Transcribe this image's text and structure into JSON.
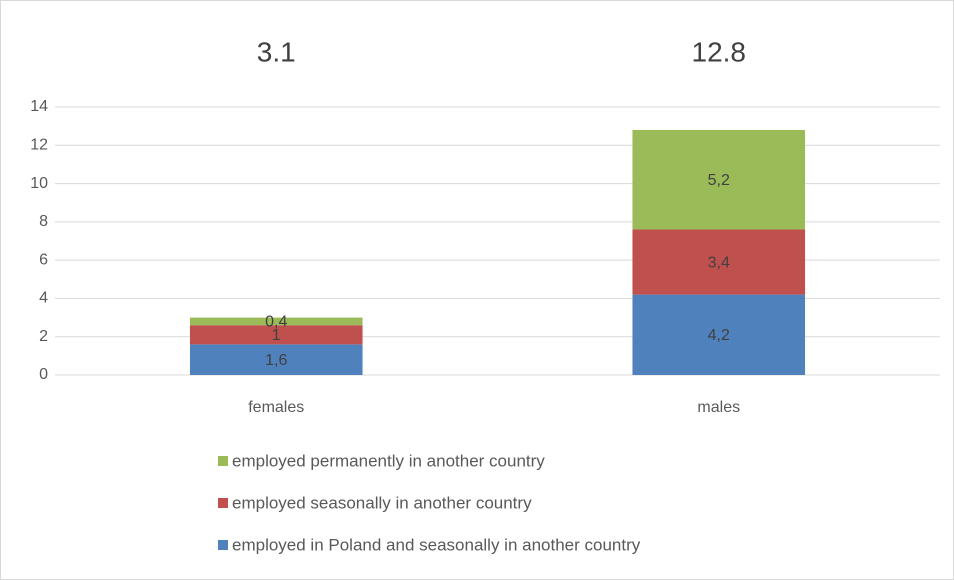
{
  "chart_data": {
    "type": "stacked_bar",
    "categories": [
      "females",
      "males"
    ],
    "totals": [
      3.1,
      12.8
    ],
    "series": [
      {
        "name": "employed in Poland and seasonally in another country",
        "color": "#4f81bd",
        "values": [
          1.6,
          4.2
        ],
        "value_labels": [
          "1,6",
          "4,2"
        ]
      },
      {
        "name": "employed seasonally in another country",
        "color": "#c0504d",
        "values": [
          1,
          3.4
        ],
        "value_labels": [
          "1",
          "3,4"
        ]
      },
      {
        "name": "employed permanently in another country",
        "color": "#9bbb59",
        "values": [
          0.4,
          5.2
        ],
        "value_labels": [
          "0,4",
          "5,2"
        ]
      }
    ],
    "ylim": [
      0,
      14
    ],
    "yticks": [
      0,
      2,
      4,
      6,
      8,
      10,
      12,
      14
    ],
    "grid": true,
    "legend": "bottom"
  }
}
